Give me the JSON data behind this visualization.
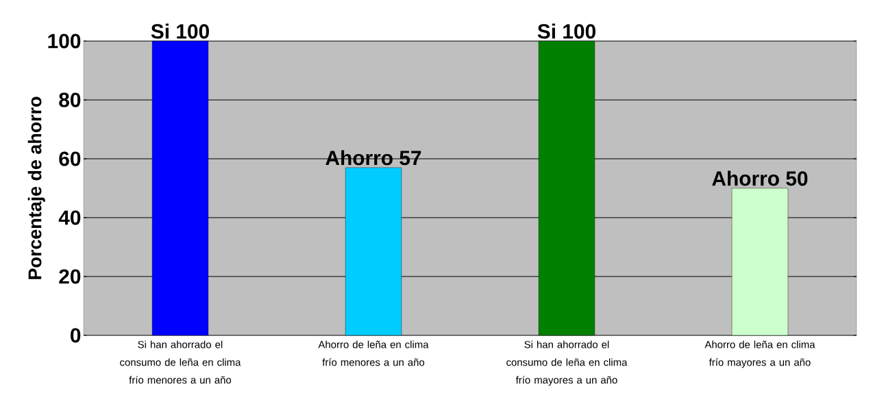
{
  "chart_data": {
    "type": "bar",
    "ylabel": "Porcentaje de ahorro",
    "categories": [
      "Si han ahorrado el consumo de leña en clima frío menores a un año",
      "Ahorro de leña en clima frío menores a un año",
      "Si han ahorrado el consumo de leña en clima frío mayores a un año",
      "Ahorro de leña en clima frío mayores a un año"
    ],
    "values": [
      100,
      57,
      100,
      50
    ],
    "colors": [
      "#0000ff",
      "#00ccff",
      "#008000",
      "#ccffcc"
    ],
    "value_labels": [
      "Si 100",
      "Ahorro 57",
      "Si 100",
      "Ahorro 50"
    ],
    "ylim": [
      0,
      100
    ],
    "yticks": [
      0,
      20,
      40,
      60,
      80,
      100
    ],
    "grid": "y"
  }
}
